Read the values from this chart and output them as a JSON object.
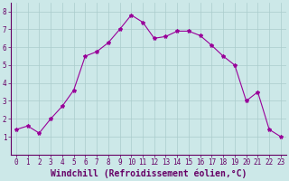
{
  "x": [
    0,
    1,
    2,
    3,
    4,
    5,
    6,
    7,
    8,
    9,
    10,
    11,
    12,
    13,
    14,
    15,
    16,
    17,
    18,
    19,
    20,
    21,
    22,
    23
  ],
  "y": [
    1.4,
    1.6,
    1.2,
    2.0,
    2.7,
    3.6,
    5.5,
    5.75,
    6.25,
    7.0,
    7.8,
    7.4,
    6.5,
    6.6,
    6.9,
    6.9,
    6.65,
    6.1,
    5.5,
    5.0,
    3.0,
    3.5,
    1.4,
    1.0
  ],
  "line_color": "#990099",
  "marker": "*",
  "marker_size": 3,
  "bg_color": "#cce8e8",
  "grid_color": "#aacccc",
  "xlabel": "Windchill (Refroidissement éolien,°C)",
  "xlabel_fontsize": 7,
  "ylim": [
    0,
    8.5
  ],
  "xlim": [
    -0.5,
    23.5
  ],
  "yticks": [
    1,
    2,
    3,
    4,
    5,
    6,
    7,
    8
  ],
  "xticks": [
    0,
    1,
    2,
    3,
    4,
    5,
    6,
    7,
    8,
    9,
    10,
    11,
    12,
    13,
    14,
    15,
    16,
    17,
    18,
    19,
    20,
    21,
    22,
    23
  ],
  "tick_fontsize": 5.5,
  "axis_color": "#660066",
  "tick_color": "#660066",
  "label_color": "#660066",
  "spine_color": "#660066"
}
